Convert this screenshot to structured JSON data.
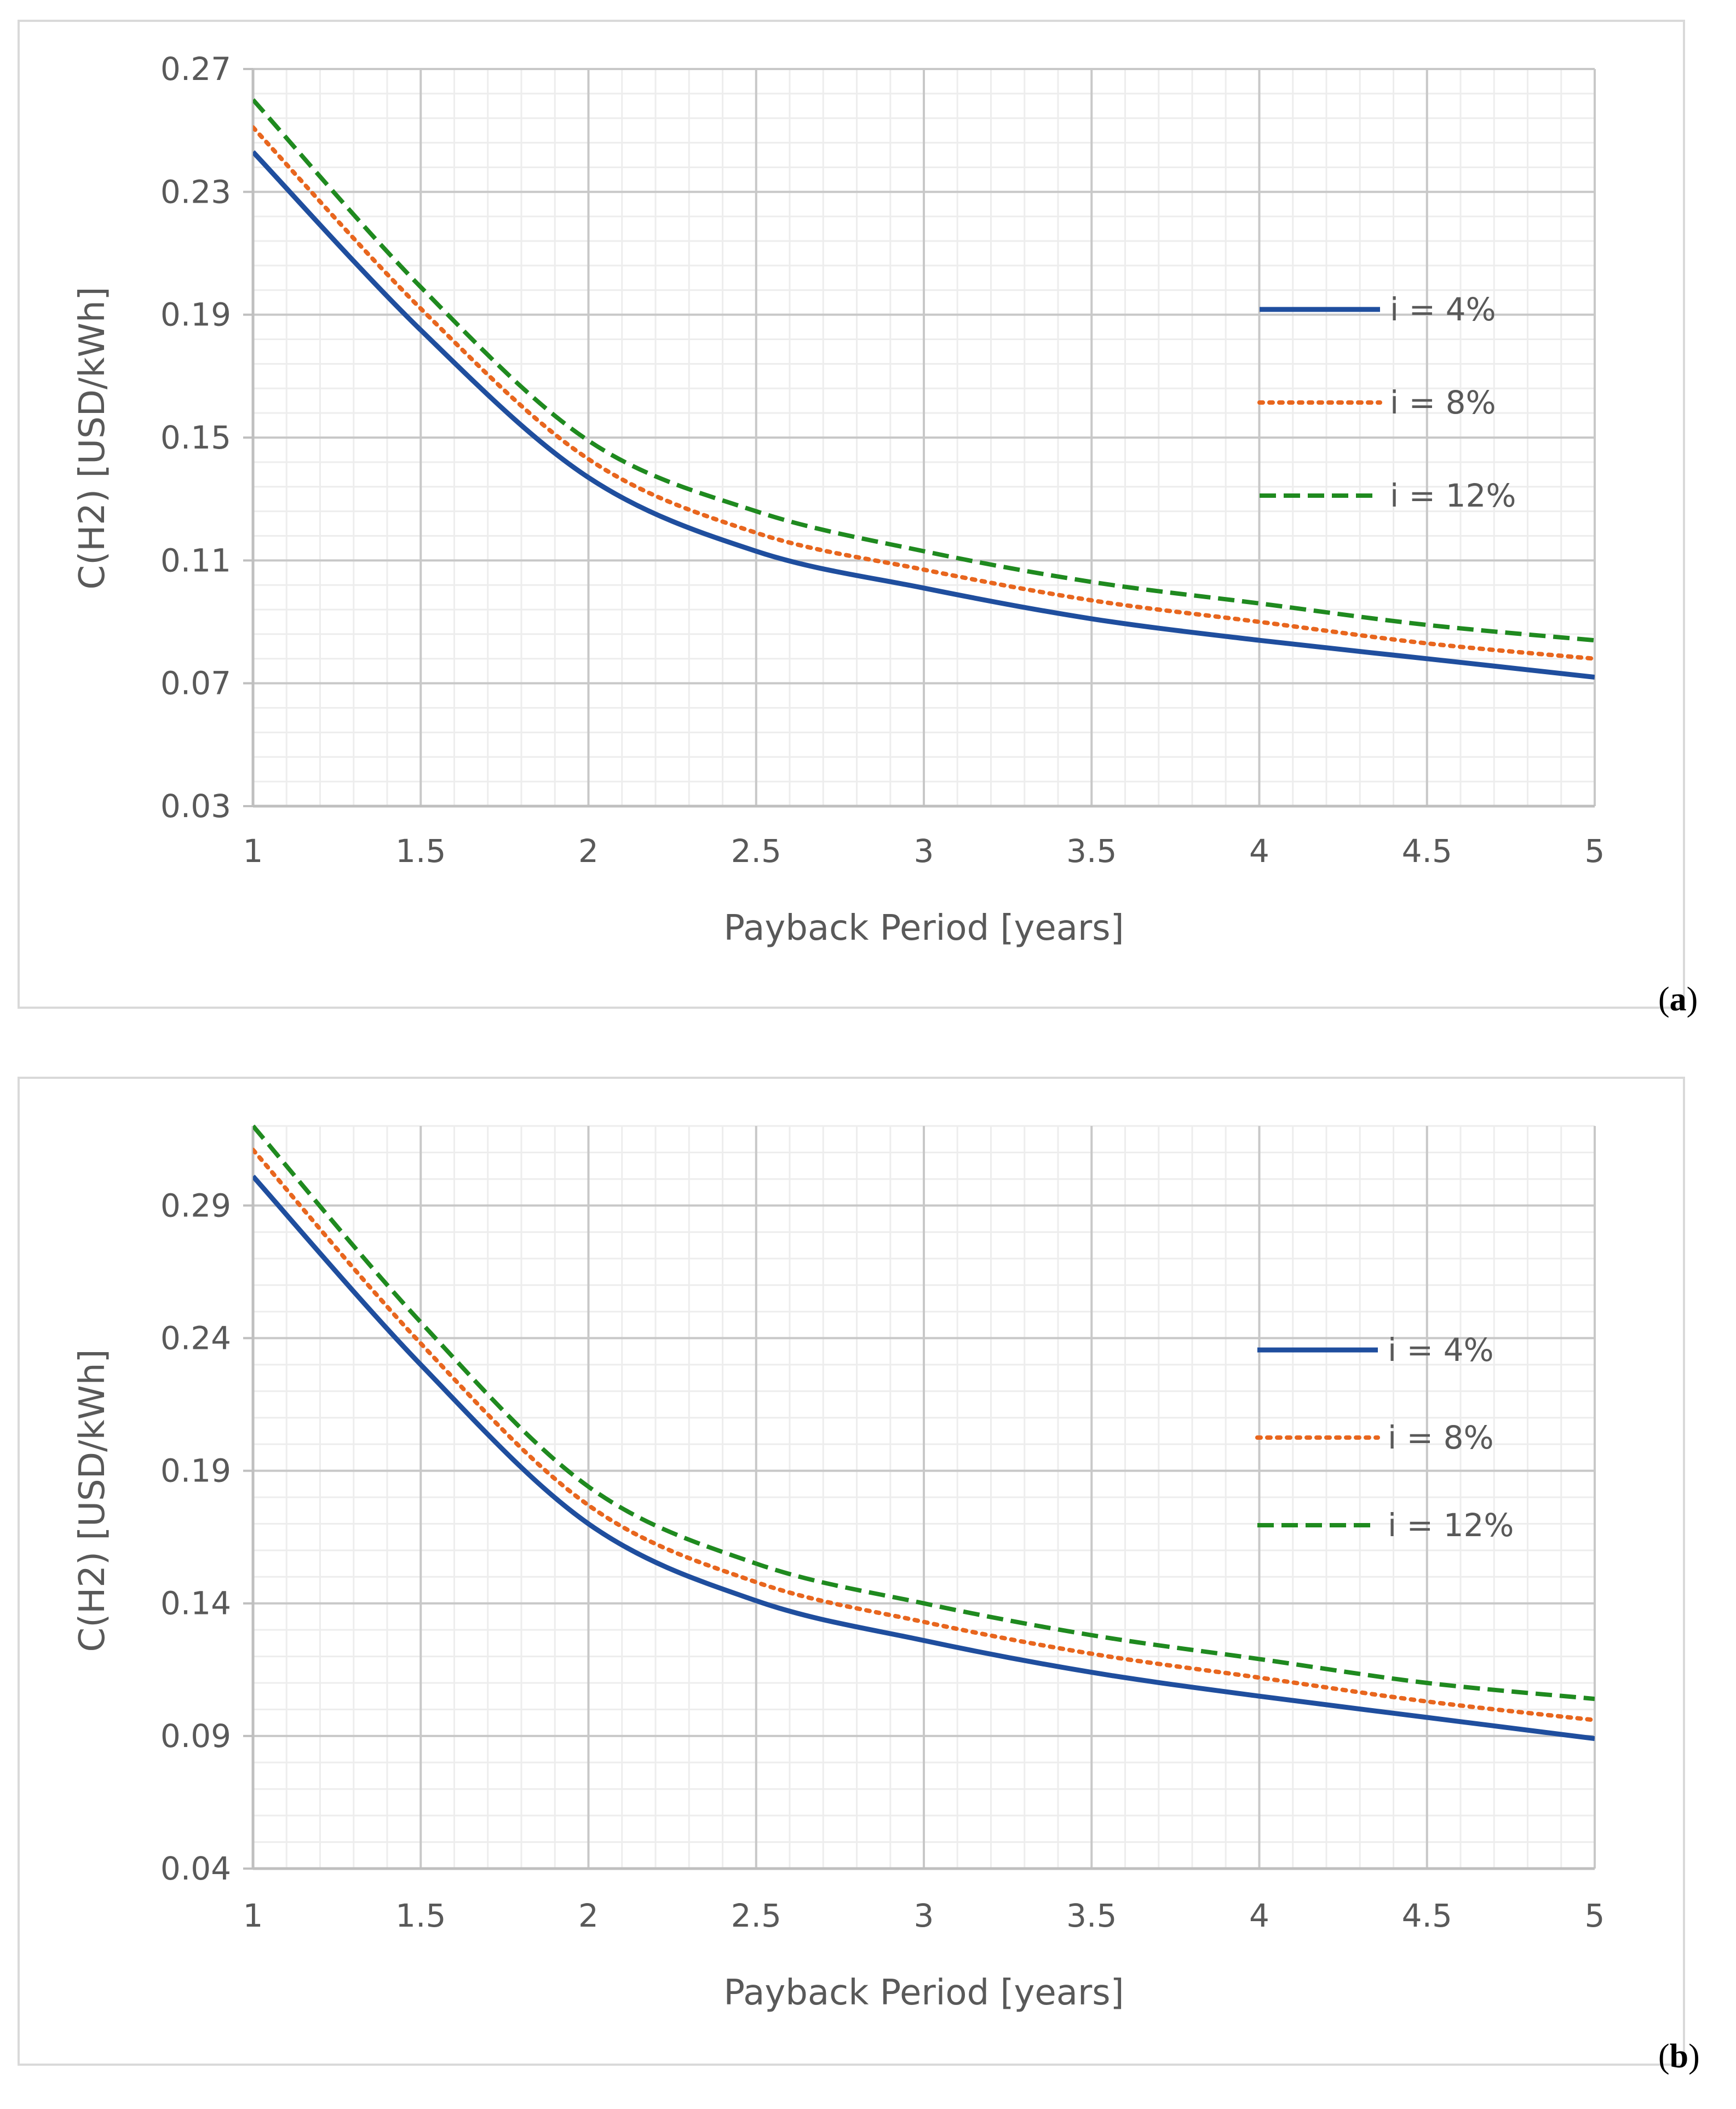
{
  "chart_data": [
    {
      "type": "line",
      "panel": "(a)",
      "panel_letter": "a",
      "title": "",
      "xlabel": "Payback Period [years]",
      "ylabel": "C(H2) [USD/kWh]",
      "xlim": [
        1,
        5
      ],
      "ylim": [
        0.03,
        0.27
      ],
      "x_ticks": [
        1,
        1.5,
        2,
        2.5,
        3,
        3.5,
        4,
        4.5,
        5
      ],
      "x_tick_labels": [
        "1",
        "1.5",
        "2",
        "2.5",
        "3",
        "3.5",
        "4",
        "4.5",
        "5"
      ],
      "y_ticks": [
        0.03,
        0.07,
        0.11,
        0.15,
        0.19,
        0.23,
        0.27
      ],
      "y_tick_labels": [
        "0.03",
        "0.07",
        "0.11",
        "0.15",
        "0.19",
        "0.23",
        "0.27"
      ],
      "grid": true,
      "legend_position": "right",
      "x": [
        1,
        1.5,
        2,
        2.5,
        3,
        3.5,
        4,
        4.5,
        5
      ],
      "series": [
        {
          "name": "i = 4%",
          "color": "#1f4e9e",
          "style": "solid",
          "values": [
            0.243,
            0.185,
            0.137,
            0.113,
            0.101,
            0.091,
            0.084,
            0.078,
            0.072
          ]
        },
        {
          "name": "i = 8%",
          "color": "#e8661e",
          "style": "dotted",
          "values": [
            0.251,
            0.192,
            0.143,
            0.119,
            0.107,
            0.097,
            0.09,
            0.083,
            0.078
          ]
        },
        {
          "name": "i = 12%",
          "color": "#1f8a1f",
          "style": "dashed",
          "values": [
            0.26,
            0.199,
            0.149,
            0.126,
            0.113,
            0.103,
            0.096,
            0.089,
            0.084
          ]
        }
      ]
    },
    {
      "type": "line",
      "panel": "(b)",
      "panel_letter": "b",
      "title": "",
      "xlabel": "Payback Period [years]",
      "ylabel": "C(H2) [USD/kWh]",
      "xlim": [
        1,
        5
      ],
      "ylim": [
        0.04,
        0.32
      ],
      "x_ticks": [
        1,
        1.5,
        2,
        2.5,
        3,
        3.5,
        4,
        4.5,
        5
      ],
      "x_tick_labels": [
        "1",
        "1.5",
        "2",
        "2.5",
        "3",
        "3.5",
        "4",
        "4.5",
        "5"
      ],
      "y_ticks": [
        0.04,
        0.09,
        0.14,
        0.19,
        0.24,
        0.29
      ],
      "y_tick_labels": [
        "0.04",
        "0.09",
        "0.14",
        "0.19",
        "0.24",
        "0.29"
      ],
      "grid": true,
      "legend_position": "right",
      "x": [
        1,
        1.5,
        2,
        2.5,
        3,
        3.5,
        4,
        4.5,
        5
      ],
      "series": [
        {
          "name": "i = 4%",
          "color": "#1f4e9e",
          "style": "solid",
          "values": [
            0.301,
            0.23,
            0.17,
            0.141,
            0.126,
            0.114,
            0.105,
            0.097,
            0.089
          ]
        },
        {
          "name": "i = 8%",
          "color": "#e8661e",
          "style": "dotted",
          "values": [
            0.311,
            0.238,
            0.177,
            0.148,
            0.133,
            0.121,
            0.112,
            0.103,
            0.096
          ]
        },
        {
          "name": "i = 12%",
          "color": "#1f8a1f",
          "style": "dashed",
          "values": [
            0.32,
            0.246,
            0.184,
            0.155,
            0.14,
            0.128,
            0.119,
            0.11,
            0.104
          ]
        }
      ]
    }
  ]
}
